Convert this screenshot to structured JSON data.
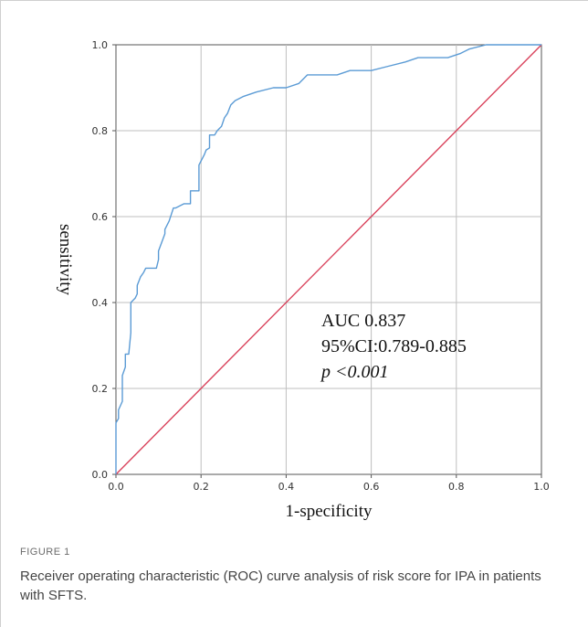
{
  "chart_data": {
    "type": "line",
    "xlabel": "1-specificity",
    "ylabel": "sensitivity",
    "xlim": [
      0,
      1
    ],
    "ylim": [
      0,
      1
    ],
    "x_ticks": [
      "0.0",
      "0.2",
      "0.4",
      "0.6",
      "0.8",
      "1.0"
    ],
    "y_ticks": [
      "0.0",
      "0.2",
      "0.4",
      "0.6",
      "0.8",
      "1.0"
    ],
    "grid": true,
    "colors": {
      "roc": "#5b9bd5",
      "reference": "#d9425b",
      "grid": "#bfbfbf"
    },
    "series": [
      {
        "x": [
          0,
          0,
          0.006,
          0.006,
          0.015,
          0.015,
          0.022,
          0.022,
          0.03,
          0.035,
          0.035,
          0.045,
          0.05,
          0.05,
          0.058,
          0.065,
          0.07,
          0.08,
          0.095,
          0.1,
          0.1,
          0.115,
          0.115,
          0.125,
          0.135,
          0.14,
          0.14,
          0.16,
          0.175,
          0.175,
          0.195,
          0.195,
          0.208,
          0.212,
          0.22,
          0.22,
          0.232,
          0.238,
          0.248,
          0.255,
          0.262,
          0.27,
          0.28,
          0.3,
          0.33,
          0.37,
          0.4,
          0.43,
          0.45,
          0.48,
          0.52,
          0.55,
          0.6,
          0.64,
          0.68,
          0.71,
          0.78,
          0.81,
          0.83,
          0.87,
          0.92,
          1.0
        ],
        "y": [
          0,
          0.12,
          0.13,
          0.15,
          0.17,
          0.23,
          0.25,
          0.28,
          0.28,
          0.33,
          0.4,
          0.41,
          0.42,
          0.44,
          0.46,
          0.47,
          0.48,
          0.48,
          0.48,
          0.5,
          0.52,
          0.56,
          0.57,
          0.59,
          0.62,
          0.62,
          0.62,
          0.63,
          0.63,
          0.66,
          0.66,
          0.72,
          0.745,
          0.755,
          0.76,
          0.79,
          0.79,
          0.8,
          0.81,
          0.83,
          0.84,
          0.86,
          0.87,
          0.88,
          0.89,
          0.9,
          0.9,
          0.91,
          0.93,
          0.93,
          0.93,
          0.94,
          0.94,
          0.95,
          0.96,
          0.97,
          0.97,
          0.98,
          0.99,
          1.0,
          1.0,
          1.0
        ]
      },
      {
        "x": [
          0,
          1
        ],
        "y": [
          0,
          1
        ]
      }
    ],
    "annotations": [
      "AUC 0.837",
      "95%CI:0.789-0.885",
      "p <0.001"
    ]
  },
  "caption": {
    "label": "FIGURE 1",
    "text": "Receiver operating characteristic (ROC) curve analysis of risk score for IPA in patients with SFTS."
  }
}
